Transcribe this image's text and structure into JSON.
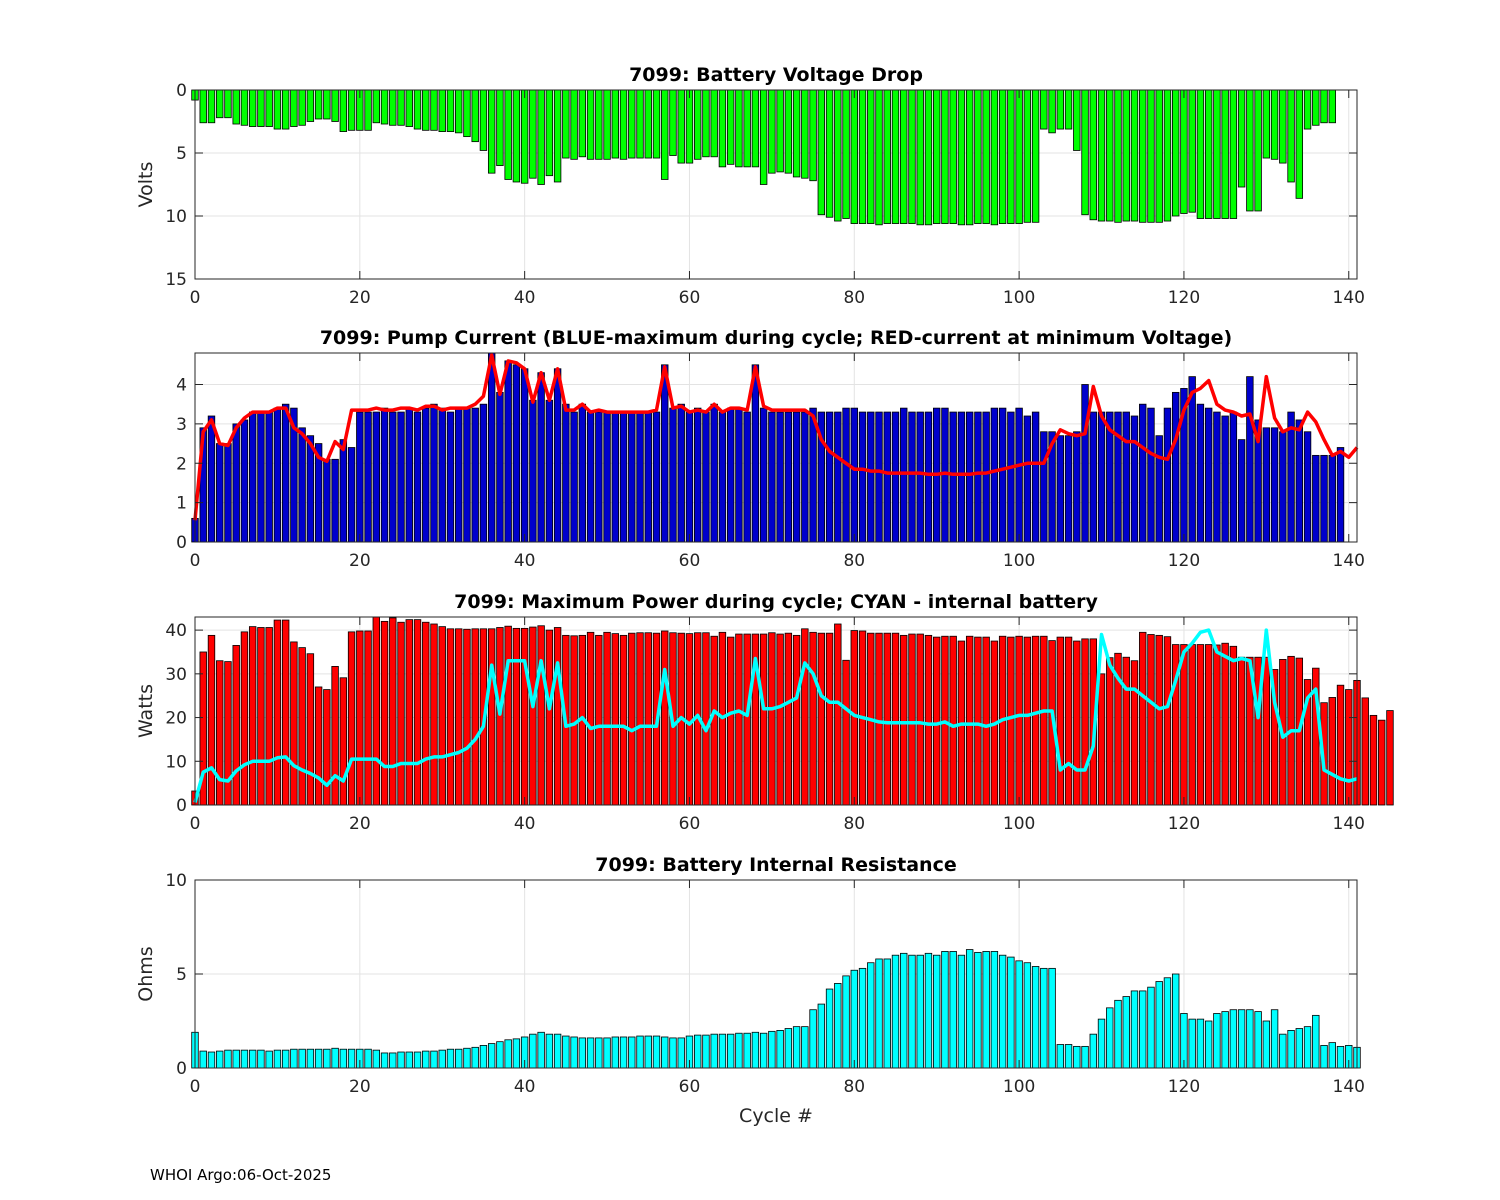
{
  "footer": "WHOI Argo:06-Oct-2025",
  "chart_data": [
    {
      "type": "bar",
      "title": "7099: Battery Voltage Drop",
      "xlabel": "",
      "ylabel": "Volts",
      "xlim": [
        0,
        141
      ],
      "ylim": [
        0,
        15
      ],
      "y_reversed": true,
      "xticks": [
        0,
        20,
        40,
        60,
        80,
        100,
        120,
        140
      ],
      "yticks": [
        0,
        5,
        10,
        15
      ],
      "grid": true,
      "colors": {
        "bar": "#00ff00"
      },
      "series": [
        {
          "values": [
            0.8,
            2.6,
            2.6,
            2.2,
            2.2,
            2.7,
            2.8,
            2.9,
            2.9,
            2.9,
            3.1,
            3.1,
            2.9,
            2.8,
            2.5,
            2.3,
            2.3,
            2.5,
            3.3,
            3.2,
            3.2,
            3.2,
            2.6,
            2.7,
            2.8,
            2.8,
            2.9,
            3.1,
            3.2,
            3.2,
            3.3,
            3.3,
            3.4,
            3.7,
            4.1,
            4.8,
            6.6,
            6.0,
            7.1,
            7.3,
            7.4,
            7.0,
            7.5,
            6.8,
            7.3,
            5.4,
            5.5,
            5.3,
            5.5,
            5.5,
            5.5,
            5.4,
            5.5,
            5.4,
            5.4,
            5.4,
            5.4,
            7.1,
            5.2,
            5.8,
            5.8,
            5.5,
            5.3,
            5.3,
            6.1,
            5.9,
            6.1,
            6.1,
            6.1,
            7.5,
            6.6,
            6.5,
            6.6,
            6.9,
            7.0,
            7.2,
            9.9,
            10.1,
            10.4,
            10.2,
            10.6,
            10.6,
            10.6,
            10.7,
            10.6,
            10.6,
            10.6,
            10.6,
            10.7,
            10.7,
            10.6,
            10.6,
            10.6,
            10.7,
            10.7,
            10.6,
            10.6,
            10.7,
            10.6,
            10.6,
            10.6,
            10.5,
            10.5,
            3.1,
            3.4,
            3.1,
            3.1,
            4.8,
            9.9,
            10.3,
            10.4,
            10.4,
            10.5,
            10.4,
            10.4,
            10.5,
            10.5,
            10.5,
            10.4,
            10.0,
            9.8,
            9.7,
            10.2,
            10.2,
            10.2,
            10.2,
            10.2,
            7.7,
            9.6,
            9.6,
            5.4,
            5.5,
            5.8,
            7.3,
            8.6,
            3.1,
            2.8,
            2.6,
            2.6
          ]
        }
      ]
    },
    {
      "type": "bar",
      "title": "7099: Pump Current (BLUE-maximum during cycle; RED-current at minimum Voltage)",
      "xlabel": "",
      "ylabel": "",
      "xlim": [
        0,
        141
      ],
      "ylim": [
        0,
        4.8
      ],
      "xticks": [
        0,
        20,
        40,
        60,
        80,
        100,
        120,
        140
      ],
      "yticks": [
        0,
        1,
        2,
        3,
        4
      ],
      "grid": true,
      "colors": {
        "bar": "#0000cc",
        "line": "#ff0000"
      },
      "series": [
        {
          "type": "bar",
          "values": [
            0.6,
            2.9,
            3.2,
            2.5,
            2.5,
            3.0,
            3.1,
            3.3,
            3.3,
            3.3,
            3.4,
            3.5,
            3.4,
            2.9,
            2.7,
            2.5,
            2.1,
            2.1,
            2.6,
            2.4,
            3.3,
            3.3,
            3.3,
            3.4,
            3.3,
            3.3,
            3.4,
            3.3,
            3.4,
            3.5,
            3.4,
            3.3,
            3.4,
            3.4,
            3.4,
            3.5,
            4.8,
            3.8,
            4.6,
            4.5,
            4.4,
            3.6,
            4.3,
            3.6,
            4.4,
            3.5,
            3.3,
            3.5,
            3.3,
            3.3,
            3.3,
            3.3,
            3.3,
            3.3,
            3.3,
            3.3,
            3.3,
            4.5,
            3.4,
            3.5,
            3.3,
            3.4,
            3.3,
            3.5,
            3.3,
            3.4,
            3.4,
            3.3,
            4.5,
            3.4,
            3.3,
            3.3,
            3.3,
            3.3,
            3.3,
            3.4,
            3.3,
            3.3,
            3.3,
            3.4,
            3.4,
            3.3,
            3.3,
            3.3,
            3.3,
            3.3,
            3.4,
            3.3,
            3.3,
            3.3,
            3.4,
            3.4,
            3.3,
            3.3,
            3.3,
            3.3,
            3.3,
            3.4,
            3.4,
            3.3,
            3.4,
            3.2,
            3.3,
            2.8,
            2.8,
            2.7,
            2.7,
            2.8,
            4.0,
            3.3,
            3.3,
            3.3,
            3.3,
            3.3,
            3.2,
            3.5,
            3.4,
            2.7,
            3.4,
            3.8,
            3.9,
            4.2,
            3.5,
            3.4,
            3.3,
            3.2,
            3.3,
            2.6,
            4.2,
            3.1,
            2.9,
            2.9,
            2.8,
            3.3,
            3.1,
            2.8,
            2.2,
            2.2,
            2.2,
            2.4
          ]
        },
        {
          "type": "line",
          "values": [
            0.55,
            2.8,
            3.1,
            2.5,
            2.45,
            2.9,
            3.15,
            3.3,
            3.3,
            3.3,
            3.4,
            3.4,
            2.9,
            2.75,
            2.5,
            2.15,
            2.05,
            2.55,
            2.35,
            3.35,
            3.35,
            3.35,
            3.4,
            3.35,
            3.35,
            3.4,
            3.4,
            3.35,
            3.45,
            3.45,
            3.35,
            3.4,
            3.4,
            3.4,
            3.5,
            3.7,
            4.75,
            3.75,
            4.6,
            4.55,
            4.4,
            3.55,
            4.3,
            3.6,
            4.4,
            3.35,
            3.35,
            3.5,
            3.3,
            3.35,
            3.3,
            3.3,
            3.3,
            3.3,
            3.3,
            3.3,
            3.35,
            4.45,
            3.4,
            3.45,
            3.3,
            3.35,
            3.3,
            3.5,
            3.3,
            3.4,
            3.4,
            3.35,
            4.45,
            3.45,
            3.35,
            3.35,
            3.35,
            3.35,
            3.35,
            3.2,
            2.6,
            2.3,
            2.15,
            2.0,
            1.85,
            1.85,
            1.8,
            1.8,
            1.75,
            1.75,
            1.75,
            1.75,
            1.75,
            1.72,
            1.72,
            1.75,
            1.72,
            1.72,
            1.72,
            1.75,
            1.75,
            1.8,
            1.85,
            1.9,
            1.95,
            2.0,
            2.0,
            2.0,
            2.5,
            2.85,
            2.75,
            2.7,
            2.75,
            3.95,
            3.2,
            2.85,
            2.7,
            2.55,
            2.55,
            2.4,
            2.25,
            2.15,
            2.1,
            2.6,
            3.35,
            3.8,
            3.9,
            4.1,
            3.5,
            3.35,
            3.3,
            3.2,
            3.25,
            2.55,
            4.2,
            3.15,
            2.8,
            2.9,
            2.85,
            3.3,
            3.05,
            2.6,
            2.2,
            2.3,
            2.15,
            2.4
          ]
        }
      ]
    },
    {
      "type": "bar",
      "title": "7099: Maximum Power during cycle; CYAN - internal battery",
      "xlabel": "",
      "ylabel": "Watts",
      "xlim": [
        0,
        141
      ],
      "ylim": [
        0,
        43
      ],
      "xticks": [
        0,
        20,
        40,
        60,
        80,
        100,
        120,
        140
      ],
      "yticks": [
        0,
        10,
        20,
        30,
        40
      ],
      "grid": true,
      "colors": {
        "bar": "#ff0000",
        "line": "#00ffff"
      },
      "series": [
        {
          "type": "bar",
          "values": [
            3.2,
            35.0,
            38.8,
            33.0,
            32.8,
            36.5,
            39.6,
            40.8,
            40.6,
            40.6,
            42.3,
            42.3,
            37.3,
            36.0,
            34.6,
            27.0,
            26.4,
            31.7,
            29.1,
            39.6,
            39.8,
            39.8,
            43.0,
            42.0,
            42.8,
            41.8,
            42.4,
            42.4,
            41.8,
            41.4,
            40.8,
            40.3,
            40.3,
            40.2,
            40.3,
            40.3,
            40.3,
            40.6,
            40.9,
            40.4,
            40.4,
            40.7,
            41.0,
            40.0,
            40.6,
            38.8,
            38.7,
            38.8,
            39.5,
            38.8,
            39.5,
            39.2,
            38.8,
            39.3,
            39.4,
            39.4,
            39.3,
            39.8,
            39.4,
            39.3,
            39.2,
            39.4,
            39.4,
            38.6,
            39.5,
            38.4,
            39.1,
            39.1,
            39.1,
            39.1,
            39.4,
            39.1,
            39.3,
            38.8,
            40.3,
            39.5,
            39.3,
            39.3,
            41.4,
            33.1,
            39.9,
            39.8,
            39.3,
            39.3,
            39.3,
            39.3,
            38.8,
            39.1,
            39.1,
            38.8,
            38.4,
            38.6,
            38.6,
            37.5,
            38.6,
            38.4,
            38.4,
            37.5,
            38.6,
            38.4,
            38.6,
            38.4,
            38.6,
            38.6,
            37.6,
            38.4,
            38.4,
            37.5,
            38.0,
            38.0,
            30.0,
            33.7,
            34.7,
            33.8,
            33.0,
            39.5,
            39.0,
            38.8,
            38.5,
            36.7,
            36.7,
            36.7,
            36.7,
            36.7,
            36.6,
            37.0,
            36.3,
            33.8,
            33.8,
            33.8,
            33.8,
            31.0,
            33.3,
            34.0,
            33.6,
            28.7,
            31.3,
            23.4,
            24.6,
            27.4,
            26.4,
            28.5,
            24.5,
            20.5,
            19.4,
            21.6
          ]
        },
        {
          "type": "line",
          "values": [
            0.6,
            7.5,
            8.5,
            5.8,
            5.5,
            7.8,
            9.2,
            10.0,
            10.0,
            10.0,
            10.8,
            11.0,
            9.0,
            8.0,
            7.2,
            6.2,
            4.5,
            6.7,
            5.5,
            10.5,
            10.5,
            10.5,
            10.5,
            8.8,
            8.8,
            9.5,
            9.5,
            9.5,
            10.5,
            11.0,
            11.0,
            11.5,
            12.0,
            13.0,
            15.0,
            18.0,
            32.0,
            20.8,
            33.0,
            33.0,
            33.0,
            22.5,
            33.0,
            22.0,
            32.5,
            18.0,
            18.5,
            20.0,
            17.5,
            18.0,
            18.0,
            18.0,
            18.0,
            17.0,
            18.0,
            18.0,
            18.0,
            31.0,
            18.0,
            20.0,
            18.5,
            20.5,
            17.0,
            21.5,
            20.0,
            21.0,
            21.5,
            20.5,
            33.5,
            22.0,
            22.0,
            22.5,
            23.5,
            24.5,
            32.5,
            30.0,
            25.0,
            23.5,
            23.5,
            22.0,
            20.5,
            20.0,
            19.5,
            19.0,
            18.8,
            18.8,
            18.8,
            18.8,
            18.8,
            18.5,
            18.5,
            19.0,
            18.0,
            18.5,
            18.5,
            18.5,
            18.0,
            18.5,
            19.5,
            20.0,
            20.5,
            20.5,
            21.0,
            21.5,
            21.5,
            8.0,
            9.5,
            8.0,
            8.0,
            13.5,
            39.0,
            32.0,
            29.0,
            26.5,
            26.5,
            25.0,
            23.5,
            22.0,
            22.5,
            28.5,
            35.0,
            37.0,
            39.5,
            40.0,
            35.0,
            34.0,
            33.0,
            33.5,
            33.0,
            20.0,
            40.0,
            23.5,
            15.5,
            17.0,
            17.0,
            24.5,
            26.5,
            8.0,
            7.0,
            6.0,
            5.5,
            6.0
          ]
        }
      ]
    },
    {
      "type": "bar",
      "title": "7099: Battery Internal Resistance",
      "xlabel": "Cycle #",
      "ylabel": "Ohms",
      "xlim": [
        0,
        141
      ],
      "ylim": [
        0,
        10
      ],
      "xticks": [
        0,
        20,
        40,
        60,
        80,
        100,
        120,
        140
      ],
      "yticks": [
        0,
        5,
        10
      ],
      "grid": true,
      "colors": {
        "bar": "#00ffff"
      },
      "series": [
        {
          "values": [
            1.9,
            0.9,
            0.85,
            0.9,
            0.95,
            0.95,
            0.95,
            0.95,
            0.95,
            0.9,
            0.95,
            0.95,
            1.0,
            1.0,
            1.0,
            1.0,
            1.0,
            1.05,
            1.0,
            1.0,
            1.0,
            1.0,
            0.95,
            0.8,
            0.8,
            0.85,
            0.85,
            0.85,
            0.9,
            0.9,
            0.95,
            1.0,
            1.0,
            1.05,
            1.1,
            1.2,
            1.3,
            1.4,
            1.5,
            1.55,
            1.65,
            1.8,
            1.9,
            1.8,
            1.8,
            1.7,
            1.65,
            1.6,
            1.6,
            1.6,
            1.6,
            1.65,
            1.65,
            1.65,
            1.7,
            1.7,
            1.7,
            1.65,
            1.6,
            1.6,
            1.7,
            1.75,
            1.75,
            1.8,
            1.8,
            1.8,
            1.85,
            1.85,
            1.9,
            1.85,
            1.95,
            2.0,
            2.1,
            2.2,
            2.2,
            3.1,
            3.4,
            4.2,
            4.5,
            4.9,
            5.2,
            5.3,
            5.6,
            5.8,
            5.8,
            6.0,
            6.1,
            6.0,
            6.0,
            6.1,
            6.0,
            6.2,
            6.2,
            6.0,
            6.3,
            6.15,
            6.2,
            6.2,
            6.0,
            5.9,
            5.7,
            5.6,
            5.4,
            5.3,
            5.3,
            1.25,
            1.25,
            1.15,
            1.15,
            1.8,
            2.6,
            3.2,
            3.6,
            3.8,
            4.1,
            4.1,
            4.3,
            4.6,
            4.8,
            5.0,
            2.9,
            2.6,
            2.6,
            2.5,
            2.9,
            3.0,
            3.1,
            3.1,
            3.1,
            3.0,
            2.5,
            3.1,
            1.8,
            2.0,
            2.1,
            2.2,
            2.8,
            1.2,
            1.35,
            1.15,
            1.2,
            1.1
          ]
        }
      ]
    }
  ]
}
